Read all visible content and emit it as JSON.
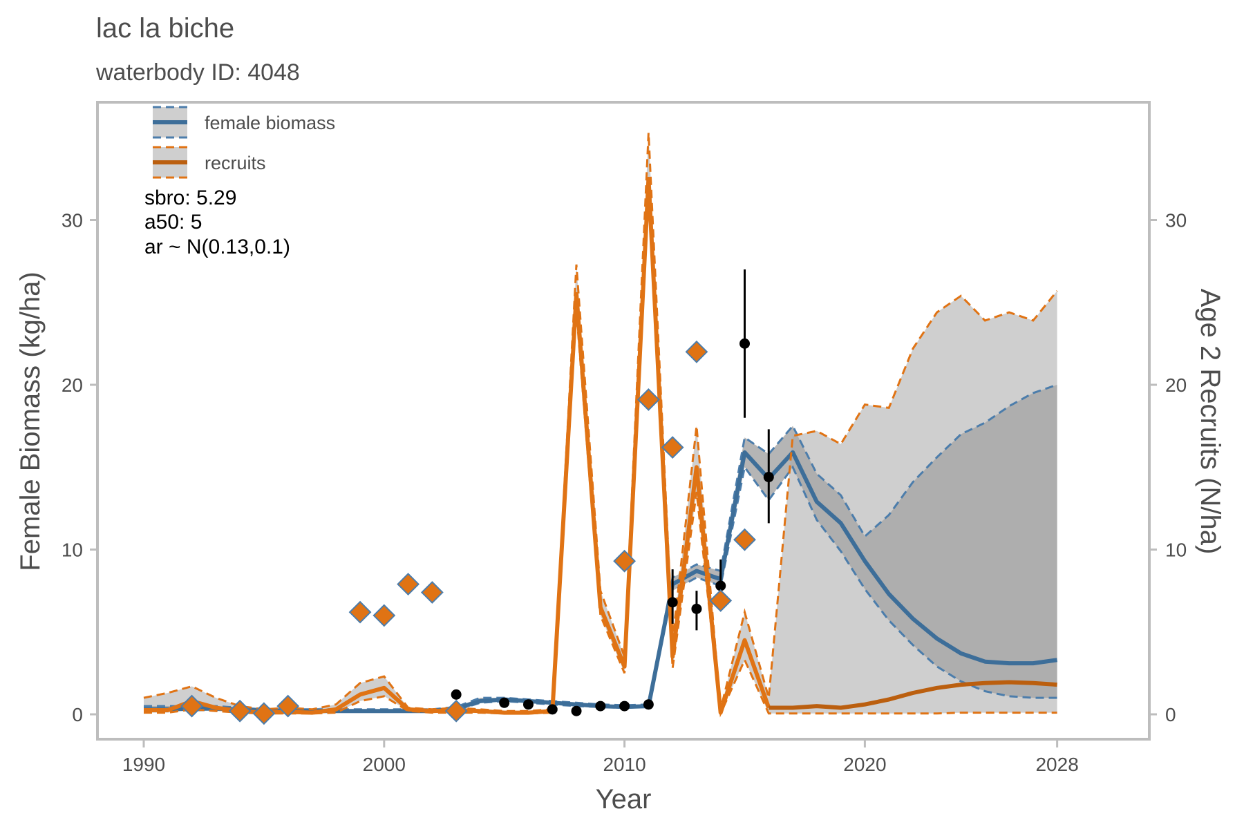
{
  "chart_data": {
    "type": "line",
    "title": "lac la biche",
    "subtitle": "waterbody ID: 4048",
    "xlabel": "Year",
    "ylabel": "Female Biomass (kg/ha)",
    "y2label": "Age 2 Recruits (N/ha)",
    "x_ticks": [
      "1990",
      "2000",
      "2010",
      "2020",
      "2028"
    ],
    "y_ticks": [
      "0",
      "10",
      "20",
      "30"
    ],
    "y2_ticks": [
      "0",
      "10",
      "20",
      "30"
    ],
    "xlim": [
      1988,
      2032
    ],
    "ylim": [
      -1.6,
      37.5
    ],
    "grid": false,
    "legend_position": "top-left",
    "colors": {
      "biomass": "#3d6e99",
      "biomass_dash": "#4c7dab",
      "recruits": "#e07314",
      "recruits_proj": "#bb5f0f",
      "ribbon": "#cfcfcf",
      "ribbon_dark": "#a8a8a8",
      "points": "#000000"
    },
    "annotations": [
      "sbro: 5.29",
      "a50: 5",
      "ar ~ N(0.13,0.1)"
    ],
    "legend": [
      {
        "label": "female biomass",
        "color": "#4c7dab"
      },
      {
        "label": "recruits",
        "color": "#e07314"
      }
    ],
    "series": [
      {
        "name": "female biomass",
        "x": [
          1990,
          1991,
          1992,
          1993,
          1994,
          1995,
          1996,
          1997,
          1998,
          1999,
          2000,
          2001,
          2002,
          2003,
          2004,
          2005,
          2006,
          2007,
          2008,
          2009,
          2010,
          2011,
          2012,
          2013,
          2014,
          2015,
          2016,
          2017,
          2018,
          2019,
          2020,
          2021,
          2022,
          2023,
          2024,
          2025,
          2026,
          2027,
          2028
        ],
        "y": [
          0.3,
          0.3,
          0.35,
          0.35,
          0.3,
          0.2,
          0.2,
          0.2,
          0.2,
          0.2,
          0.2,
          0.2,
          0.2,
          0.35,
          0.8,
          0.9,
          0.8,
          0.7,
          0.6,
          0.5,
          0.45,
          0.5,
          7.9,
          8.7,
          8.2,
          15.9,
          14.3,
          15.9,
          12.9,
          11.6,
          9.3,
          7.3,
          5.8,
          4.6,
          3.7,
          3.2,
          3.1,
          3.1,
          3.3
        ],
        "lower": [
          0.2,
          0.2,
          0.25,
          0.25,
          0.2,
          0.15,
          0.15,
          0.15,
          0.15,
          0.15,
          0.15,
          0.15,
          0.15,
          0.25,
          0.7,
          0.8,
          0.7,
          0.6,
          0.5,
          0.45,
          0.4,
          0.45,
          7.5,
          8.3,
          7.8,
          15.0,
          13.0,
          15.0,
          11.8,
          9.9,
          7.6,
          5.7,
          4.2,
          2.9,
          2.0,
          1.4,
          1.1,
          1.0,
          1.0
        ],
        "upper": [
          0.5,
          0.5,
          0.5,
          0.5,
          0.4,
          0.3,
          0.3,
          0.3,
          0.3,
          0.3,
          0.3,
          0.3,
          0.3,
          0.45,
          1.0,
          1.0,
          0.9,
          0.8,
          0.7,
          0.6,
          0.55,
          0.6,
          8.3,
          9.1,
          8.7,
          16.8,
          15.8,
          17.5,
          14.6,
          13.3,
          10.8,
          12.1,
          14.1,
          15.6,
          17.0,
          17.7,
          18.7,
          19.5,
          20.0
        ]
      },
      {
        "name": "recruits",
        "x": [
          1990,
          1991,
          1992,
          1993,
          1994,
          1995,
          1996,
          1997,
          1998,
          1999,
          2000,
          2001,
          2002,
          2003,
          2004,
          2005,
          2006,
          2007,
          2008,
          2009,
          2010,
          2011,
          2012,
          2013,
          2014,
          2015,
          2016,
          2017,
          2018,
          2019,
          2020,
          2021,
          2022,
          2023,
          2024,
          2025,
          2026,
          2027,
          2028
        ],
        "y": [
          0.25,
          0.25,
          0.8,
          0.4,
          0.2,
          0.1,
          0.15,
          0.1,
          0.3,
          1.2,
          1.6,
          0.3,
          0.2,
          0.25,
          0.2,
          0.1,
          0.1,
          0.2,
          25.5,
          6.5,
          2.9,
          32.5,
          3.5,
          15.0,
          0.1,
          4.5,
          0.4,
          0.4,
          0.5,
          0.4,
          0.6,
          0.9,
          1.3,
          1.6,
          1.8,
          1.9,
          1.95,
          1.9,
          1.8
        ],
        "lower": [
          0.1,
          0.1,
          0.3,
          0.2,
          0.1,
          0.05,
          0.05,
          0.05,
          0.1,
          0.8,
          1.1,
          0.2,
          0.1,
          0.1,
          0.1,
          0.05,
          0.05,
          0.1,
          24.5,
          6.0,
          2.5,
          31.5,
          2.8,
          13.5,
          0.05,
          3.3,
          0.05,
          0.05,
          0.05,
          0.05,
          0.05,
          0.05,
          0.05,
          0.05,
          0.1,
          0.1,
          0.1,
          0.1,
          0.1
        ],
        "upper": [
          1.0,
          1.3,
          1.7,
          1.0,
          0.5,
          0.3,
          0.4,
          0.3,
          0.6,
          1.9,
          2.3,
          0.4,
          0.3,
          0.4,
          0.3,
          0.2,
          0.2,
          0.3,
          27.3,
          7.5,
          3.5,
          35.3,
          4.5,
          17.5,
          0.3,
          6.2,
          1.0,
          16.9,
          17.2,
          16.4,
          18.8,
          18.6,
          22.2,
          24.4,
          25.4,
          23.9,
          24.4,
          23.9,
          25.7
        ]
      }
    ],
    "observed_biomass": {
      "x": [
        2003,
        2005,
        2006,
        2007,
        2008,
        2009,
        2010,
        2011,
        2012,
        2013,
        2014,
        2015,
        2016
      ],
      "y": [
        1.2,
        0.7,
        0.6,
        0.3,
        0.2,
        0.5,
        0.5,
        0.6,
        6.8,
        6.4,
        7.8,
        22.5,
        14.4
      ],
      "lower": [
        null,
        null,
        null,
        null,
        null,
        null,
        null,
        null,
        5.5,
        5.1,
        6.8,
        18.0,
        11.6
      ],
      "upper": [
        null,
        null,
        null,
        null,
        null,
        null,
        null,
        null,
        8.8,
        7.5,
        9.4,
        27.0,
        17.3
      ]
    },
    "observed_recruits": {
      "x": [
        1992,
        1994,
        1995,
        1996,
        1999,
        2000,
        2001,
        2002,
        2003,
        2010,
        2011,
        2012,
        2013,
        2014,
        2015
      ],
      "y": [
        0.5,
        0.2,
        0.05,
        0.5,
        6.2,
        6.0,
        7.9,
        7.4,
        0.2,
        9.3,
        19.1,
        16.2,
        22.0,
        6.9,
        10.6
      ]
    }
  }
}
